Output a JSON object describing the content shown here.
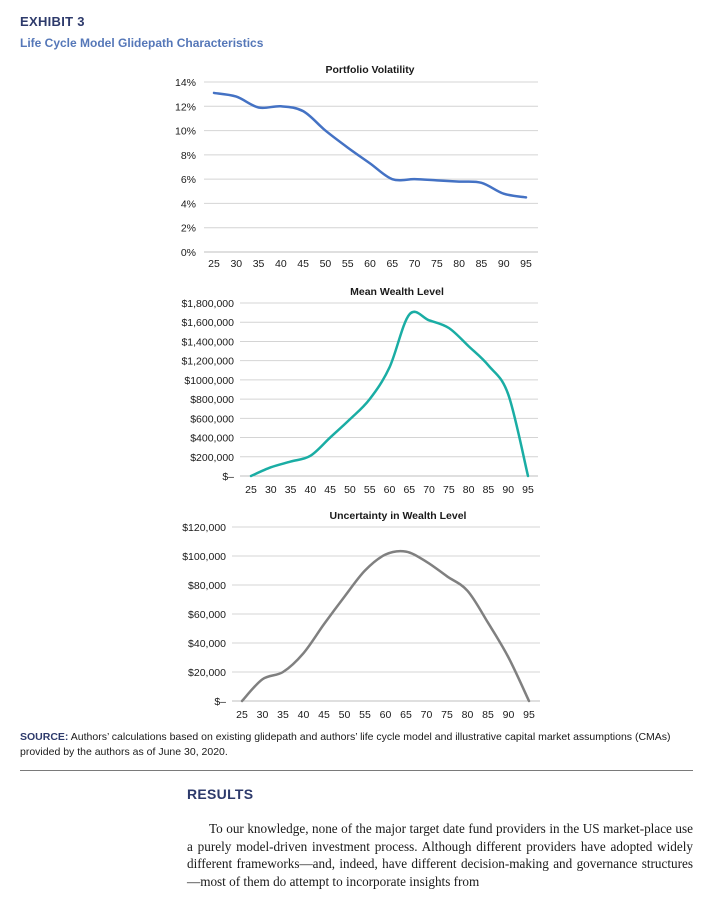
{
  "exhibit": {
    "label": "EXHIBIT 3",
    "title": "Life Cycle Model Glidepath Characteristics"
  },
  "chart_data": [
    {
      "type": "line",
      "title": "Portfolio Volatility",
      "categories": [
        "25",
        "30",
        "35",
        "40",
        "45",
        "50",
        "55",
        "60",
        "65",
        "70",
        "75",
        "80",
        "85",
        "90",
        "95"
      ],
      "x": [
        25,
        30,
        35,
        40,
        45,
        50,
        55,
        60,
        65,
        70,
        75,
        80,
        85,
        90,
        95
      ],
      "series": [
        {
          "values": [
            13.1,
            12.8,
            11.9,
            12.0,
            11.6,
            10.0,
            8.6,
            7.3,
            6.0,
            6.0,
            5.9,
            5.8,
            5.7,
            4.8,
            4.5
          ]
        }
      ],
      "ylim": [
        0,
        14
      ],
      "yticks": [
        0,
        2,
        4,
        6,
        8,
        10,
        12,
        14
      ],
      "ytick_labels": [
        "0%",
        "2%",
        "4%",
        "6%",
        "8%",
        "10%",
        "12%",
        "14%"
      ],
      "color": "#4472c4",
      "grid": true
    },
    {
      "type": "line",
      "title": "Mean Wealth Level",
      "categories": [
        "25",
        "30",
        "35",
        "40",
        "45",
        "50",
        "55",
        "60",
        "65",
        "70",
        "75",
        "80",
        "85",
        "90",
        "95"
      ],
      "x": [
        25,
        30,
        35,
        40,
        45,
        50,
        55,
        60,
        65,
        70,
        75,
        80,
        85,
        90,
        95
      ],
      "series": [
        {
          "values": [
            0,
            90000,
            150000,
            210000,
            400000,
            590000,
            800000,
            1130000,
            1680000,
            1620000,
            1540000,
            1350000,
            1150000,
            850000,
            0
          ]
        }
      ],
      "ylim": [
        0,
        1800000
      ],
      "yticks": [
        0,
        200000,
        400000,
        600000,
        800000,
        1000000,
        1200000,
        1400000,
        1600000,
        1800000
      ],
      "ytick_labels": [
        "$–",
        "$200,000",
        "$400,000",
        "$600,000",
        "$800,000",
        "$1000,000",
        "$1,200,000",
        "$1,400,000",
        "$1,600,000",
        "$1,800,000"
      ],
      "color": "#1aada4",
      "grid": true
    },
    {
      "type": "line",
      "title": "Uncertainty in Wealth Level",
      "categories": [
        "25",
        "30",
        "35",
        "40",
        "45",
        "50",
        "55",
        "60",
        "65",
        "70",
        "75",
        "80",
        "85",
        "90",
        "95"
      ],
      "x": [
        25,
        30,
        35,
        40,
        45,
        50,
        55,
        60,
        65,
        70,
        75,
        80,
        85,
        90,
        95
      ],
      "series": [
        {
          "values": [
            0,
            15000,
            20000,
            33000,
            53000,
            72000,
            90000,
            101000,
            103000,
            96000,
            86000,
            76000,
            54000,
            30000,
            0
          ]
        }
      ],
      "ylim": [
        0,
        120000
      ],
      "yticks": [
        0,
        20000,
        40000,
        60000,
        80000,
        100000,
        120000
      ],
      "ytick_labels": [
        "$–",
        "$20,000",
        "$40,000",
        "$60,000",
        "$80,000",
        "$100,000",
        "$120,000"
      ],
      "color": "#808080",
      "grid": true
    }
  ],
  "source": {
    "label": "SOURCE:",
    "text": " Authors’ calculations based on existing glidepath and authors’ life cycle model and illustrative capital market assumptions (CMAs) provided by the authors as of June 30, 2020."
  },
  "results": {
    "heading": "RESULTS",
    "body": "To our knowledge, none of the major target date fund providers in the US market-place use a purely model-driven investment process. Although different providers have adopted widely different frameworks—and, indeed, have different decision-making and governance structures—most of them do attempt to incorporate insights from"
  }
}
